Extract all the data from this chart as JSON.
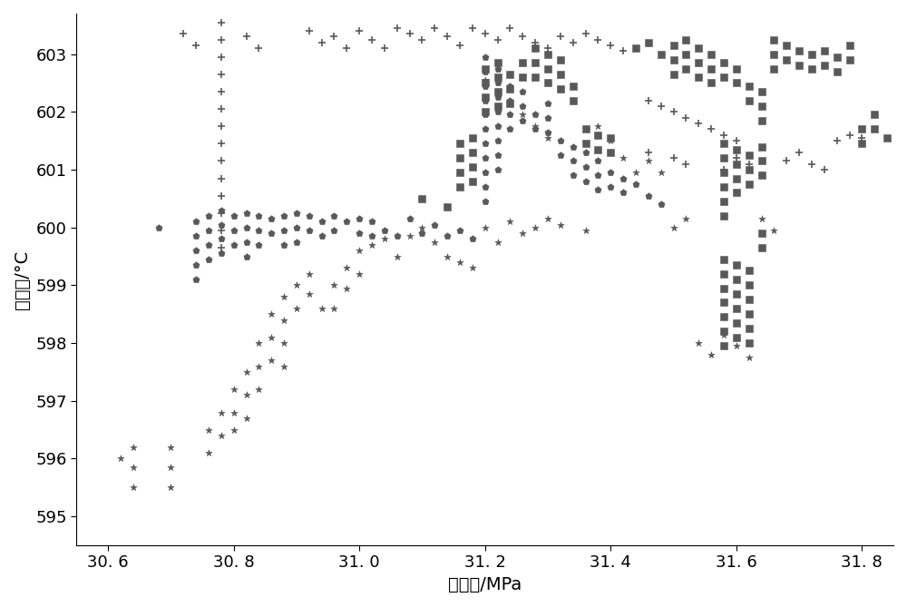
{
  "xlabel": "主汽压/MPa",
  "ylabel": "主汽温/°C",
  "xlim": [
    30.55,
    31.85
  ],
  "ylim": [
    594.5,
    603.7
  ],
  "xticks": [
    30.6,
    30.8,
    31.0,
    31.2,
    31.4,
    31.6,
    31.8
  ],
  "yticks": [
    595,
    596,
    597,
    598,
    599,
    600,
    601,
    602,
    603
  ],
  "color": "#595959",
  "ms_plus": 35,
  "ms_star": 30,
  "ms_pent": 30,
  "ms_sq": 35,
  "plus_data": [
    [
      30.72,
      603.35
    ],
    [
      30.74,
      603.15
    ],
    [
      30.78,
      603.55
    ],
    [
      30.78,
      603.25
    ],
    [
      30.78,
      602.95
    ],
    [
      30.78,
      602.65
    ],
    [
      30.78,
      602.35
    ],
    [
      30.78,
      602.05
    ],
    [
      30.78,
      601.75
    ],
    [
      30.78,
      601.45
    ],
    [
      30.78,
      601.15
    ],
    [
      30.78,
      600.85
    ],
    [
      30.78,
      600.55
    ],
    [
      30.78,
      600.25
    ],
    [
      30.78,
      599.95
    ],
    [
      30.78,
      599.65
    ],
    [
      30.82,
      603.3
    ],
    [
      30.84,
      603.1
    ],
    [
      30.92,
      603.4
    ],
    [
      30.94,
      603.2
    ],
    [
      30.96,
      603.3
    ],
    [
      30.98,
      603.1
    ],
    [
      31.0,
      603.4
    ],
    [
      31.02,
      603.25
    ],
    [
      31.04,
      603.1
    ],
    [
      31.06,
      603.45
    ],
    [
      31.08,
      603.35
    ],
    [
      31.1,
      603.25
    ],
    [
      31.12,
      603.45
    ],
    [
      31.14,
      603.3
    ],
    [
      31.16,
      603.15
    ],
    [
      31.18,
      603.45
    ],
    [
      31.2,
      603.35
    ],
    [
      31.22,
      603.25
    ],
    [
      31.24,
      603.45
    ],
    [
      31.26,
      603.3
    ],
    [
      31.28,
      603.2
    ],
    [
      31.3,
      603.1
    ],
    [
      31.32,
      603.3
    ],
    [
      31.34,
      603.2
    ],
    [
      31.36,
      603.35
    ],
    [
      31.38,
      603.25
    ],
    [
      31.4,
      603.15
    ],
    [
      31.42,
      603.05
    ],
    [
      31.46,
      602.2
    ],
    [
      31.48,
      602.1
    ],
    [
      31.5,
      602.0
    ],
    [
      31.52,
      601.9
    ],
    [
      31.54,
      601.8
    ],
    [
      31.56,
      601.7
    ],
    [
      31.58,
      601.6
    ],
    [
      31.6,
      601.5
    ],
    [
      31.46,
      601.3
    ],
    [
      31.5,
      601.2
    ],
    [
      31.52,
      601.1
    ],
    [
      31.58,
      601.0
    ],
    [
      31.6,
      601.2
    ],
    [
      31.62,
      601.1
    ],
    [
      31.64,
      600.9
    ],
    [
      31.68,
      601.15
    ],
    [
      31.7,
      601.3
    ],
    [
      31.72,
      601.1
    ],
    [
      31.74,
      601.0
    ],
    [
      31.76,
      601.5
    ],
    [
      31.78,
      601.6
    ],
    [
      31.8,
      601.55
    ]
  ],
  "star_data": [
    [
      30.62,
      596.0
    ],
    [
      30.64,
      596.2
    ],
    [
      30.64,
      595.85
    ],
    [
      30.64,
      595.5
    ],
    [
      30.7,
      596.2
    ],
    [
      30.7,
      595.85
    ],
    [
      30.7,
      595.5
    ],
    [
      30.76,
      596.5
    ],
    [
      30.76,
      596.1
    ],
    [
      30.78,
      596.8
    ],
    [
      30.78,
      596.4
    ],
    [
      30.8,
      597.2
    ],
    [
      30.8,
      596.8
    ],
    [
      30.8,
      596.5
    ],
    [
      30.82,
      597.5
    ],
    [
      30.82,
      597.1
    ],
    [
      30.82,
      596.7
    ],
    [
      30.84,
      598.0
    ],
    [
      30.84,
      597.6
    ],
    [
      30.84,
      597.2
    ],
    [
      30.86,
      598.5
    ],
    [
      30.86,
      598.1
    ],
    [
      30.86,
      597.7
    ],
    [
      30.88,
      598.8
    ],
    [
      30.88,
      598.4
    ],
    [
      30.88,
      598.0
    ],
    [
      30.88,
      597.6
    ],
    [
      30.9,
      599.0
    ],
    [
      30.9,
      598.6
    ],
    [
      30.92,
      599.2
    ],
    [
      30.92,
      598.85
    ],
    [
      30.94,
      598.6
    ],
    [
      30.96,
      599.0
    ],
    [
      30.96,
      598.6
    ],
    [
      30.98,
      599.3
    ],
    [
      30.98,
      598.95
    ],
    [
      31.0,
      599.6
    ],
    [
      31.0,
      599.2
    ],
    [
      31.02,
      599.7
    ],
    [
      31.04,
      599.8
    ],
    [
      31.06,
      599.5
    ],
    [
      31.08,
      599.85
    ],
    [
      31.1,
      600.0
    ],
    [
      31.12,
      599.75
    ],
    [
      31.14,
      599.5
    ],
    [
      31.16,
      599.4
    ],
    [
      31.18,
      599.3
    ],
    [
      31.2,
      600.0
    ],
    [
      31.22,
      599.75
    ],
    [
      31.24,
      600.1
    ],
    [
      31.26,
      599.9
    ],
    [
      31.28,
      600.0
    ],
    [
      31.3,
      600.15
    ],
    [
      31.32,
      600.05
    ],
    [
      31.36,
      599.95
    ],
    [
      31.2,
      602.55
    ],
    [
      31.22,
      602.35
    ],
    [
      31.24,
      602.15
    ],
    [
      31.26,
      601.95
    ],
    [
      31.28,
      601.75
    ],
    [
      31.3,
      601.55
    ],
    [
      31.38,
      601.75
    ],
    [
      31.4,
      601.5
    ],
    [
      31.42,
      601.2
    ],
    [
      31.44,
      600.95
    ],
    [
      31.46,
      601.15
    ],
    [
      31.48,
      600.95
    ],
    [
      31.5,
      600.0
    ],
    [
      31.52,
      600.15
    ],
    [
      31.54,
      598.0
    ],
    [
      31.56,
      597.8
    ],
    [
      31.58,
      598.15
    ],
    [
      31.6,
      597.95
    ],
    [
      31.62,
      597.75
    ],
    [
      31.64,
      600.15
    ],
    [
      31.66,
      599.95
    ]
  ],
  "pent_data": [
    [
      30.68,
      600.0
    ],
    [
      30.74,
      600.1
    ],
    [
      30.74,
      599.85
    ],
    [
      30.74,
      599.6
    ],
    [
      30.74,
      599.35
    ],
    [
      30.74,
      599.1
    ],
    [
      30.76,
      600.2
    ],
    [
      30.76,
      599.95
    ],
    [
      30.76,
      599.7
    ],
    [
      30.76,
      599.45
    ],
    [
      30.78,
      600.3
    ],
    [
      30.78,
      600.05
    ],
    [
      30.78,
      599.8
    ],
    [
      30.78,
      599.55
    ],
    [
      30.8,
      600.2
    ],
    [
      30.8,
      599.95
    ],
    [
      30.8,
      599.7
    ],
    [
      30.82,
      600.25
    ],
    [
      30.82,
      600.0
    ],
    [
      30.82,
      599.75
    ],
    [
      30.82,
      599.5
    ],
    [
      30.84,
      600.2
    ],
    [
      30.84,
      599.95
    ],
    [
      30.84,
      599.7
    ],
    [
      30.86,
      600.15
    ],
    [
      30.86,
      599.9
    ],
    [
      30.88,
      600.2
    ],
    [
      30.88,
      599.95
    ],
    [
      30.88,
      599.7
    ],
    [
      30.9,
      600.25
    ],
    [
      30.9,
      600.0
    ],
    [
      30.9,
      599.75
    ],
    [
      30.92,
      600.2
    ],
    [
      30.92,
      599.95
    ],
    [
      30.94,
      600.1
    ],
    [
      30.94,
      599.85
    ],
    [
      30.96,
      600.2
    ],
    [
      30.96,
      599.95
    ],
    [
      30.98,
      600.1
    ],
    [
      31.0,
      600.15
    ],
    [
      31.0,
      599.9
    ],
    [
      31.02,
      600.1
    ],
    [
      31.02,
      599.85
    ],
    [
      31.04,
      599.95
    ],
    [
      31.06,
      599.85
    ],
    [
      31.08,
      600.15
    ],
    [
      31.1,
      599.9
    ],
    [
      31.12,
      600.05
    ],
    [
      31.14,
      599.85
    ],
    [
      31.16,
      599.95
    ],
    [
      31.18,
      599.8
    ],
    [
      31.2,
      602.95
    ],
    [
      31.2,
      602.7
    ],
    [
      31.2,
      602.45
    ],
    [
      31.2,
      602.2
    ],
    [
      31.2,
      601.95
    ],
    [
      31.2,
      601.7
    ],
    [
      31.2,
      601.45
    ],
    [
      31.2,
      601.2
    ],
    [
      31.2,
      600.95
    ],
    [
      31.2,
      600.7
    ],
    [
      31.2,
      600.45
    ],
    [
      31.22,
      602.75
    ],
    [
      31.22,
      602.5
    ],
    [
      31.22,
      602.25
    ],
    [
      31.22,
      602.0
    ],
    [
      31.22,
      601.75
    ],
    [
      31.22,
      601.5
    ],
    [
      31.22,
      601.25
    ],
    [
      31.22,
      601.0
    ],
    [
      31.24,
      602.45
    ],
    [
      31.24,
      602.2
    ],
    [
      31.24,
      601.95
    ],
    [
      31.24,
      601.7
    ],
    [
      31.26,
      602.35
    ],
    [
      31.26,
      602.1
    ],
    [
      31.26,
      601.85
    ],
    [
      31.28,
      601.95
    ],
    [
      31.28,
      601.7
    ],
    [
      31.3,
      602.15
    ],
    [
      31.3,
      601.9
    ],
    [
      31.3,
      601.65
    ],
    [
      31.32,
      601.5
    ],
    [
      31.32,
      601.25
    ],
    [
      31.34,
      601.4
    ],
    [
      31.34,
      601.15
    ],
    [
      31.34,
      600.9
    ],
    [
      31.36,
      601.3
    ],
    [
      31.36,
      601.05
    ],
    [
      31.36,
      600.8
    ],
    [
      31.38,
      601.15
    ],
    [
      31.38,
      600.9
    ],
    [
      31.38,
      600.65
    ],
    [
      31.4,
      600.95
    ],
    [
      31.4,
      600.7
    ],
    [
      31.42,
      600.85
    ],
    [
      31.42,
      600.6
    ],
    [
      31.44,
      600.75
    ],
    [
      31.46,
      600.55
    ],
    [
      31.48,
      600.4
    ]
  ],
  "sq_data": [
    [
      31.1,
      600.5
    ],
    [
      31.14,
      600.35
    ],
    [
      31.16,
      601.45
    ],
    [
      31.16,
      601.2
    ],
    [
      31.16,
      600.95
    ],
    [
      31.16,
      600.7
    ],
    [
      31.18,
      601.55
    ],
    [
      31.18,
      601.3
    ],
    [
      31.18,
      601.05
    ],
    [
      31.18,
      600.8
    ],
    [
      31.2,
      602.75
    ],
    [
      31.2,
      602.5
    ],
    [
      31.2,
      602.25
    ],
    [
      31.2,
      602.0
    ],
    [
      31.22,
      602.85
    ],
    [
      31.22,
      602.6
    ],
    [
      31.22,
      602.35
    ],
    [
      31.22,
      602.1
    ],
    [
      31.24,
      602.65
    ],
    [
      31.24,
      602.4
    ],
    [
      31.24,
      602.15
    ],
    [
      31.26,
      602.85
    ],
    [
      31.26,
      602.6
    ],
    [
      31.28,
      603.1
    ],
    [
      31.28,
      602.85
    ],
    [
      31.28,
      602.6
    ],
    [
      31.3,
      603.0
    ],
    [
      31.3,
      602.75
    ],
    [
      31.3,
      602.5
    ],
    [
      31.32,
      602.9
    ],
    [
      31.32,
      602.65
    ],
    [
      31.32,
      602.4
    ],
    [
      31.34,
      602.45
    ],
    [
      31.34,
      602.2
    ],
    [
      31.36,
      601.7
    ],
    [
      31.36,
      601.45
    ],
    [
      31.38,
      601.6
    ],
    [
      31.38,
      601.35
    ],
    [
      31.4,
      601.55
    ],
    [
      31.4,
      601.3
    ],
    [
      31.44,
      603.1
    ],
    [
      31.46,
      603.2
    ],
    [
      31.48,
      603.0
    ],
    [
      31.5,
      603.15
    ],
    [
      31.5,
      602.9
    ],
    [
      31.5,
      602.65
    ],
    [
      31.52,
      603.25
    ],
    [
      31.52,
      603.0
    ],
    [
      31.52,
      602.75
    ],
    [
      31.54,
      603.1
    ],
    [
      31.54,
      602.85
    ],
    [
      31.54,
      602.6
    ],
    [
      31.56,
      603.0
    ],
    [
      31.56,
      602.75
    ],
    [
      31.56,
      602.5
    ],
    [
      31.58,
      602.85
    ],
    [
      31.58,
      602.6
    ],
    [
      31.58,
      601.45
    ],
    [
      31.58,
      601.2
    ],
    [
      31.58,
      600.95
    ],
    [
      31.58,
      600.7
    ],
    [
      31.58,
      600.45
    ],
    [
      31.58,
      600.2
    ],
    [
      31.58,
      599.45
    ],
    [
      31.58,
      599.2
    ],
    [
      31.58,
      598.95
    ],
    [
      31.58,
      598.7
    ],
    [
      31.58,
      598.45
    ],
    [
      31.58,
      598.2
    ],
    [
      31.58,
      597.95
    ],
    [
      31.6,
      602.75
    ],
    [
      31.6,
      602.5
    ],
    [
      31.6,
      601.35
    ],
    [
      31.6,
      601.1
    ],
    [
      31.6,
      600.85
    ],
    [
      31.6,
      600.6
    ],
    [
      31.6,
      599.35
    ],
    [
      31.6,
      599.1
    ],
    [
      31.6,
      598.85
    ],
    [
      31.6,
      598.6
    ],
    [
      31.6,
      598.35
    ],
    [
      31.6,
      598.1
    ],
    [
      31.62,
      602.45
    ],
    [
      31.62,
      602.2
    ],
    [
      31.62,
      601.25
    ],
    [
      31.62,
      601.0
    ],
    [
      31.62,
      600.75
    ],
    [
      31.62,
      599.25
    ],
    [
      31.62,
      599.0
    ],
    [
      31.62,
      598.75
    ],
    [
      31.62,
      598.5
    ],
    [
      31.62,
      598.25
    ],
    [
      31.62,
      598.0
    ],
    [
      31.64,
      602.35
    ],
    [
      31.64,
      602.1
    ],
    [
      31.64,
      601.85
    ],
    [
      31.64,
      601.4
    ],
    [
      31.64,
      601.15
    ],
    [
      31.64,
      600.9
    ],
    [
      31.64,
      599.9
    ],
    [
      31.64,
      599.65
    ],
    [
      31.66,
      603.25
    ],
    [
      31.66,
      603.0
    ],
    [
      31.66,
      602.75
    ],
    [
      31.68,
      603.15
    ],
    [
      31.68,
      602.9
    ],
    [
      31.7,
      603.05
    ],
    [
      31.7,
      602.8
    ],
    [
      31.72,
      603.0
    ],
    [
      31.72,
      602.75
    ],
    [
      31.74,
      603.05
    ],
    [
      31.74,
      602.8
    ],
    [
      31.76,
      602.95
    ],
    [
      31.76,
      602.7
    ],
    [
      31.78,
      603.15
    ],
    [
      31.78,
      602.9
    ],
    [
      31.8,
      601.7
    ],
    [
      31.8,
      601.45
    ],
    [
      31.82,
      601.95
    ],
    [
      31.82,
      601.7
    ],
    [
      31.84,
      601.55
    ]
  ]
}
